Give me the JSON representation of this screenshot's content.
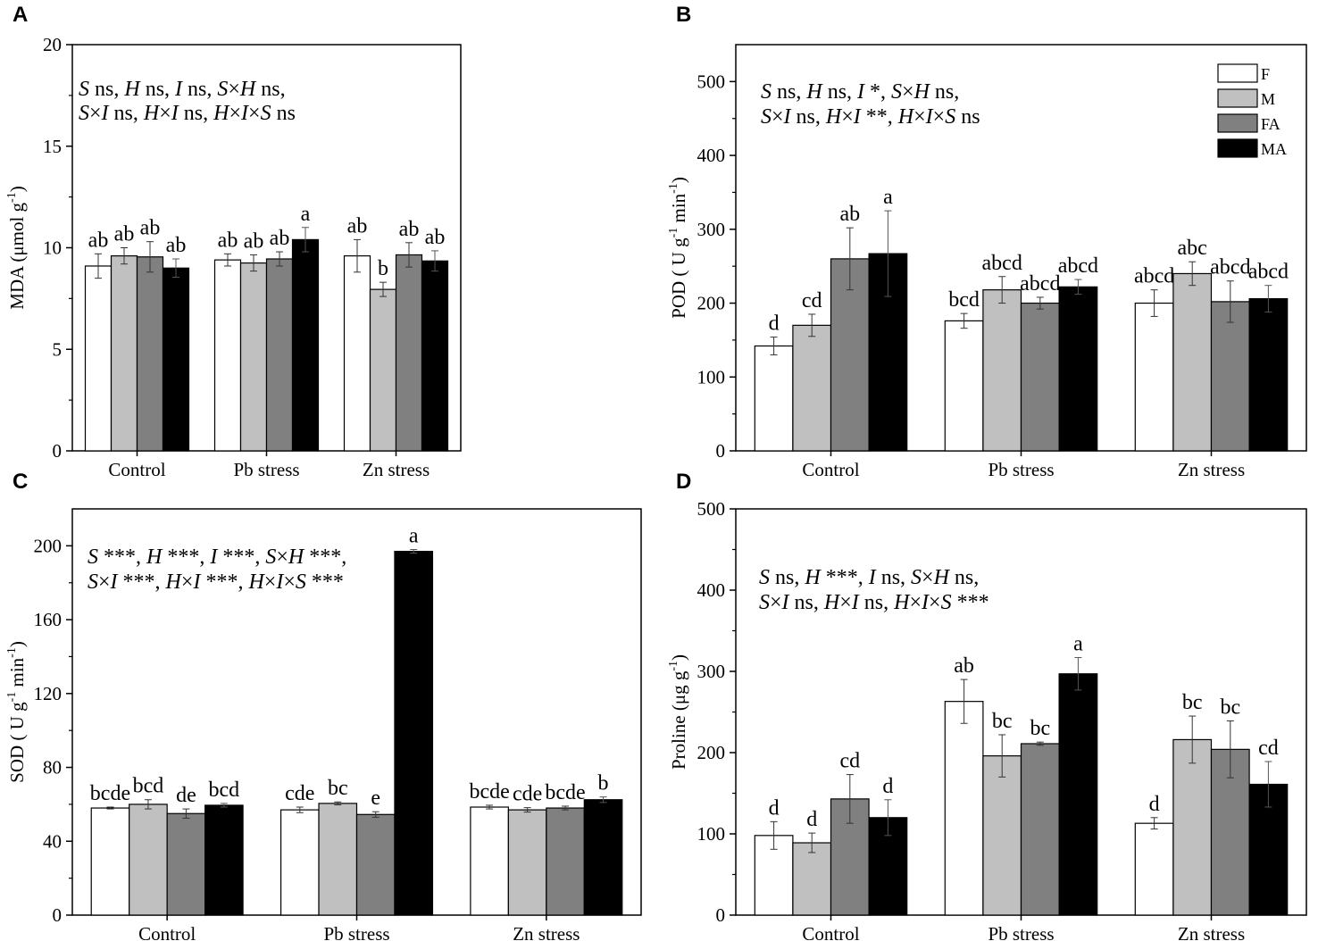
{
  "colors": {
    "F": "#ffffff",
    "M": "#c0c0c0",
    "FA": "#808080",
    "MA": "#000000"
  },
  "categories": [
    "Control",
    "Pb stress",
    "Zn stress"
  ],
  "legend": [
    "F",
    "M",
    "FA",
    "MA"
  ],
  "chart_data": [
    {
      "panel": "A",
      "type": "bar",
      "ylabel": "MDA (μmol g",
      "ylabel_sup": "-1",
      "ylabel_end": ")",
      "ylim": [
        0,
        20
      ],
      "yticks": [
        0,
        5,
        10,
        15,
        20
      ],
      "annotation_lines": [
        "S ns, H ns, I ns, S×H ns,",
        "S×I ns, H×I ns, H×I×S ns"
      ],
      "series": [
        {
          "name": "F",
          "values": [
            9.1,
            9.4,
            9.6
          ],
          "errors": [
            0.6,
            0.3,
            0.8
          ],
          "letters": [
            "ab",
            "ab",
            "ab"
          ]
        },
        {
          "name": "M",
          "values": [
            9.6,
            9.25,
            7.95
          ],
          "errors": [
            0.4,
            0.4,
            0.35
          ],
          "letters": [
            "ab",
            "ab",
            "b"
          ]
        },
        {
          "name": "FA",
          "values": [
            9.55,
            9.45,
            9.65
          ],
          "errors": [
            0.75,
            0.35,
            0.6
          ],
          "letters": [
            "ab",
            "ab",
            "ab"
          ]
        },
        {
          "name": "MA",
          "values": [
            9.0,
            10.4,
            9.35
          ],
          "errors": [
            0.45,
            0.6,
            0.5
          ],
          "letters": [
            "ab",
            "a",
            "ab"
          ]
        }
      ]
    },
    {
      "panel": "B",
      "type": "bar",
      "ylabel": "POD ( U g",
      "ylabel_sup": "-1",
      "ylabel_mid": " min",
      "ylabel_sup2": "-1",
      "ylabel_end": ")",
      "ylim": [
        0,
        550
      ],
      "yticks": [
        0,
        100,
        200,
        300,
        400,
        500
      ],
      "annotation_lines": [
        "S ns, H ns, I *, S×H ns,",
        "S×I ns, H×I **, H×I×S ns"
      ],
      "series": [
        {
          "name": "F",
          "values": [
            142,
            176,
            200
          ],
          "errors": [
            12,
            10,
            18
          ],
          "letters": [
            "d",
            "bcd",
            "abcd"
          ]
        },
        {
          "name": "M",
          "values": [
            170,
            218,
            240
          ],
          "errors": [
            15,
            18,
            16
          ],
          "letters": [
            "cd",
            "abcd",
            "abc"
          ]
        },
        {
          "name": "FA",
          "values": [
            260,
            200,
            202
          ],
          "errors": [
            42,
            8,
            28
          ],
          "letters": [
            "ab",
            "abcd",
            "abcd"
          ]
        },
        {
          "name": "MA",
          "values": [
            267,
            222,
            206
          ],
          "errors": [
            58,
            10,
            18
          ],
          "letters": [
            "a",
            "abcd",
            "abcd"
          ]
        }
      ]
    },
    {
      "panel": "C",
      "type": "bar",
      "ylabel": "SOD  ( U g",
      "ylabel_sup": "-1",
      "ylabel_mid": " min",
      "ylabel_sup2": "-1",
      "ylabel_end": ")",
      "ylim": [
        0,
        220
      ],
      "yticks": [
        0,
        40,
        80,
        120,
        160,
        200
      ],
      "annotation_lines": [
        "S ***, H ***, I ***, S×H ***,",
        "S×I ***, H×I ***, H×I×S ***"
      ],
      "series": [
        {
          "name": "F",
          "values": [
            58,
            57,
            58.5
          ],
          "errors": [
            0.5,
            1.5,
            1.0
          ],
          "letters": [
            "bcde",
            "cde",
            "bcde"
          ]
        },
        {
          "name": "M",
          "values": [
            60,
            60.5,
            57
          ],
          "errors": [
            2.5,
            0.8,
            1.2
          ],
          "letters": [
            "bcd",
            "bc",
            "cde"
          ]
        },
        {
          "name": "FA",
          "values": [
            55,
            54.5,
            58
          ],
          "errors": [
            2.5,
            1.5,
            1.0
          ],
          "letters": [
            "de",
            "e",
            "bcde"
          ]
        },
        {
          "name": "MA",
          "values": [
            59.5,
            197,
            62.5
          ],
          "errors": [
            1.0,
            1.0,
            1.5
          ],
          "letters": [
            "bcd",
            "a",
            "b"
          ]
        }
      ]
    },
    {
      "panel": "D",
      "type": "bar",
      "ylabel": "Proline (μg g",
      "ylabel_sup": "-1",
      "ylabel_end": ")",
      "ylim": [
        0,
        500
      ],
      "yticks": [
        0,
        100,
        200,
        300,
        400,
        500
      ],
      "annotation_lines": [
        "S ns, H ***, I ns, S×H ns,",
        "S×I ns, H×I ns, H×I×S ***"
      ],
      "series": [
        {
          "name": "F",
          "values": [
            98,
            263,
            113
          ],
          "errors": [
            17,
            27,
            7
          ],
          "letters": [
            "d",
            "ab",
            "d"
          ]
        },
        {
          "name": "M",
          "values": [
            89,
            196,
            216
          ],
          "errors": [
            12,
            26,
            29
          ],
          "letters": [
            "d",
            "bc",
            "bc"
          ]
        },
        {
          "name": "FA",
          "values": [
            143,
            211,
            204
          ],
          "errors": [
            30,
            2,
            35
          ],
          "letters": [
            "cd",
            "bc",
            "bc"
          ]
        },
        {
          "name": "MA",
          "values": [
            120,
            297,
            161
          ],
          "errors": [
            22,
            20,
            28
          ],
          "letters": [
            "d",
            "a",
            "cd"
          ]
        }
      ]
    }
  ]
}
